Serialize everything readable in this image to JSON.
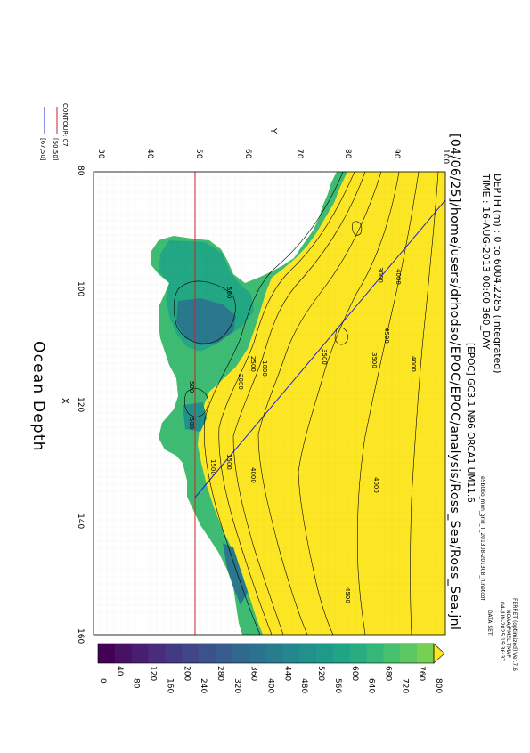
{
  "header": {
    "depth_line": "DEPTH (m) : 0 to 6004.2285 (integrated)",
    "time_line": "TIME : 16-AUG-2013 00:00 360_DAY",
    "model_line": "[EPOC] GC3.1 N96 ORCA1 UM11.6",
    "path_line": "[04/06/25]/home/users/drhodso/EPOC/EPOC/analysis/Ross_Sea/Ross_Sea.jnl"
  },
  "title": "Ocean Depth",
  "ferret": {
    "line1": "FERRET (optimized) Ver.7.6",
    "line2": "NOAA/PMEL TMAP",
    "line3": "04-JUN-2025 15:36:37"
  },
  "dataset": {
    "label": "DATA SET:",
    "file": "e5b0bo_mon_grid_T_201308-201308_rl.netcdf"
  },
  "axes": {
    "x_label": "X",
    "y_label": "Y",
    "x_ticks": [
      "80",
      "100",
      "120",
      "140",
      "160"
    ],
    "y_ticks": [
      "100",
      "90",
      "80",
      "70",
      "60",
      "50",
      "40",
      "30"
    ]
  },
  "contour_legend": {
    "title": "CONTOUR: 07",
    "items": [
      {
        "label": "[50,50]",
        "color": "#cc2222"
      },
      {
        "label": "[67,50]",
        "color": "#2222cc"
      }
    ]
  },
  "colorbar": {
    "labels": [
      "0",
      "40",
      "80",
      "120",
      "160",
      "200",
      "240",
      "280",
      "320",
      "360",
      "400",
      "440",
      "480",
      "520",
      "560",
      "600",
      "640",
      "680",
      "720",
      "760",
      "800"
    ],
    "palette": [
      "#440154",
      "#471164",
      "#481f70",
      "#472d7b",
      "#443a83",
      "#404688",
      "#3b528b",
      "#365d8d",
      "#31688e",
      "#2c728e",
      "#287c8e",
      "#24868e",
      "#21918c",
      "#1f9a8a",
      "#20a486",
      "#27ad81",
      "#35b779",
      "#47c16e",
      "#5dc863",
      "#75d054"
    ]
  },
  "contour_labels": [
    "4500",
    "4000",
    "3500",
    "3000",
    "2500",
    "2000",
    "1500",
    "1000",
    "500",
    "4000",
    "3500",
    "4000",
    "4500",
    "4000",
    "500",
    "500",
    "1500"
  ],
  "map_data": {
    "type": "colored-map-with-contours",
    "variable": "Ocean Depth",
    "x_range": [
      80,
      160
    ],
    "y_range": [
      30,
      100
    ],
    "color_range": [
      0,
      800
    ],
    "reference_lines": [
      {
        "label": "[50,50]",
        "color": "#cc2222"
      },
      {
        "label": "[67,50]",
        "color": "#2222cc"
      }
    ]
  }
}
